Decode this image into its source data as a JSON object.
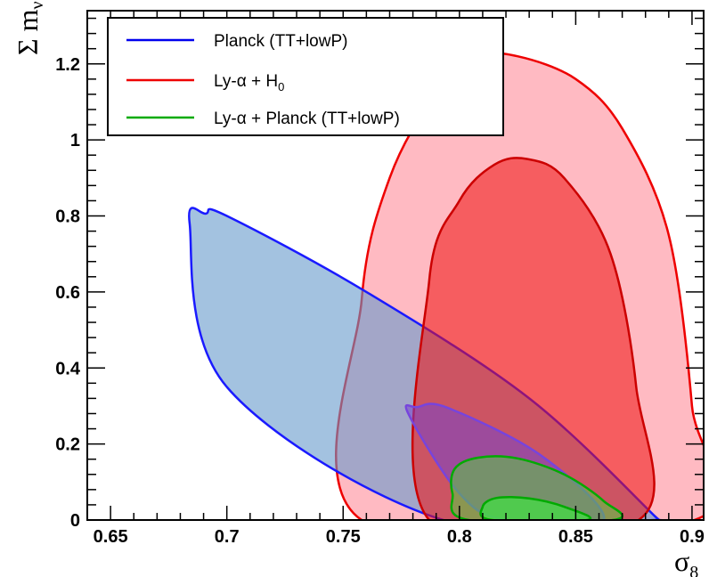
{
  "chart_data": {
    "type": "contour",
    "xlabel": "σ",
    "xlabel_sub": "8",
    "ylabel": "Σ m",
    "ylabel_sub": "ν",
    "xlim": [
      0.64,
      0.905
    ],
    "ylim": [
      0.0,
      1.34
    ],
    "x_ticks": [
      "0.65",
      "0.7",
      "0.75",
      "0.8",
      "0.85",
      "0.9"
    ],
    "y_ticks": [
      "0",
      "0.2",
      "0.4",
      "0.6",
      "0.8",
      "1",
      "1.2"
    ],
    "legend": {
      "placement": "top-left",
      "entries": [
        {
          "label": "Planck (TT+lowP)",
          "color": "#0000ee"
        },
        {
          "label": "Ly-α + H",
          "sub": "0",
          "color": "#ee0000"
        },
        {
          "label": "Ly-α + Planck (TT+lowP)",
          "color": "#00aa00"
        }
      ]
    },
    "series": [
      {
        "name": "Planck (TT+lowP)",
        "level": "95%",
        "stroke": "#1a1aff",
        "fill": "#6699cc",
        "fill_opacity": 0.6,
        "points": [
          [
            0.793,
            0.0
          ],
          [
            0.7,
            0.35
          ],
          [
            0.684,
            0.78
          ],
          [
            0.691,
            0.806
          ],
          [
            0.7,
            0.8
          ],
          [
            0.76,
            0.6
          ],
          [
            0.83,
            0.32
          ],
          [
            0.884,
            0.01
          ],
          [
            0.884,
            0.0
          ]
        ]
      },
      {
        "name": "Planck (TT+lowP)",
        "level": "68%",
        "stroke": "#7744dd",
        "fill": "#7744cc",
        "fill_opacity": 0.55,
        "points": [
          [
            0.8,
            0.07
          ],
          [
            0.778,
            0.28
          ],
          [
            0.782,
            0.297
          ],
          [
            0.795,
            0.295
          ],
          [
            0.835,
            0.17
          ],
          [
            0.862,
            0.0
          ],
          [
            0.82,
            0.0
          ]
        ]
      },
      {
        "name": "Ly-α + H0",
        "level": "95%",
        "stroke": "#ee0000",
        "fill": "#ff6677",
        "fill_opacity": 0.45,
        "points": [
          [
            0.758,
            0.0
          ],
          [
            0.758,
            0.58
          ],
          [
            0.77,
            0.9
          ],
          [
            0.79,
            1.12
          ],
          [
            0.81,
            1.215
          ],
          [
            0.825,
            1.22
          ],
          [
            0.85,
            1.16
          ],
          [
            0.87,
            1.03
          ],
          [
            0.89,
            0.75
          ],
          [
            0.9,
            0.3
          ],
          [
            0.901,
            0.0
          ]
        ]
      },
      {
        "name": "Ly-α + H0",
        "level": "68%",
        "stroke": "#cc0000",
        "fill": "#ee1111",
        "fill_opacity": 0.55,
        "points": [
          [
            0.787,
            0.0
          ],
          [
            0.787,
            0.63
          ],
          [
            0.8,
            0.84
          ],
          [
            0.815,
            0.935
          ],
          [
            0.829,
            0.95
          ],
          [
            0.845,
            0.9
          ],
          [
            0.865,
            0.7
          ],
          [
            0.876,
            0.35
          ],
          [
            0.877,
            0.0
          ]
        ]
      },
      {
        "name": "Ly-α + Planck (TT+lowP)",
        "level": "95%",
        "stroke": "#00aa00",
        "fill": "#55cc44",
        "fill_opacity": 0.55,
        "points": [
          [
            0.804,
            0.0
          ],
          [
            0.797,
            0.07
          ],
          [
            0.798,
            0.135
          ],
          [
            0.808,
            0.164
          ],
          [
            0.825,
            0.162
          ],
          [
            0.845,
            0.12
          ],
          [
            0.862,
            0.05
          ],
          [
            0.866,
            0.0
          ]
        ]
      },
      {
        "name": "Ly-α + Planck (TT+lowP)",
        "level": "68%",
        "stroke": "#00aa00",
        "fill": "#44dd44",
        "fill_opacity": 0.75,
        "points": [
          [
            0.814,
            0.0
          ],
          [
            0.81,
            0.035
          ],
          [
            0.816,
            0.058
          ],
          [
            0.83,
            0.057
          ],
          [
            0.845,
            0.035
          ],
          [
            0.855,
            0.0
          ]
        ]
      }
    ]
  }
}
